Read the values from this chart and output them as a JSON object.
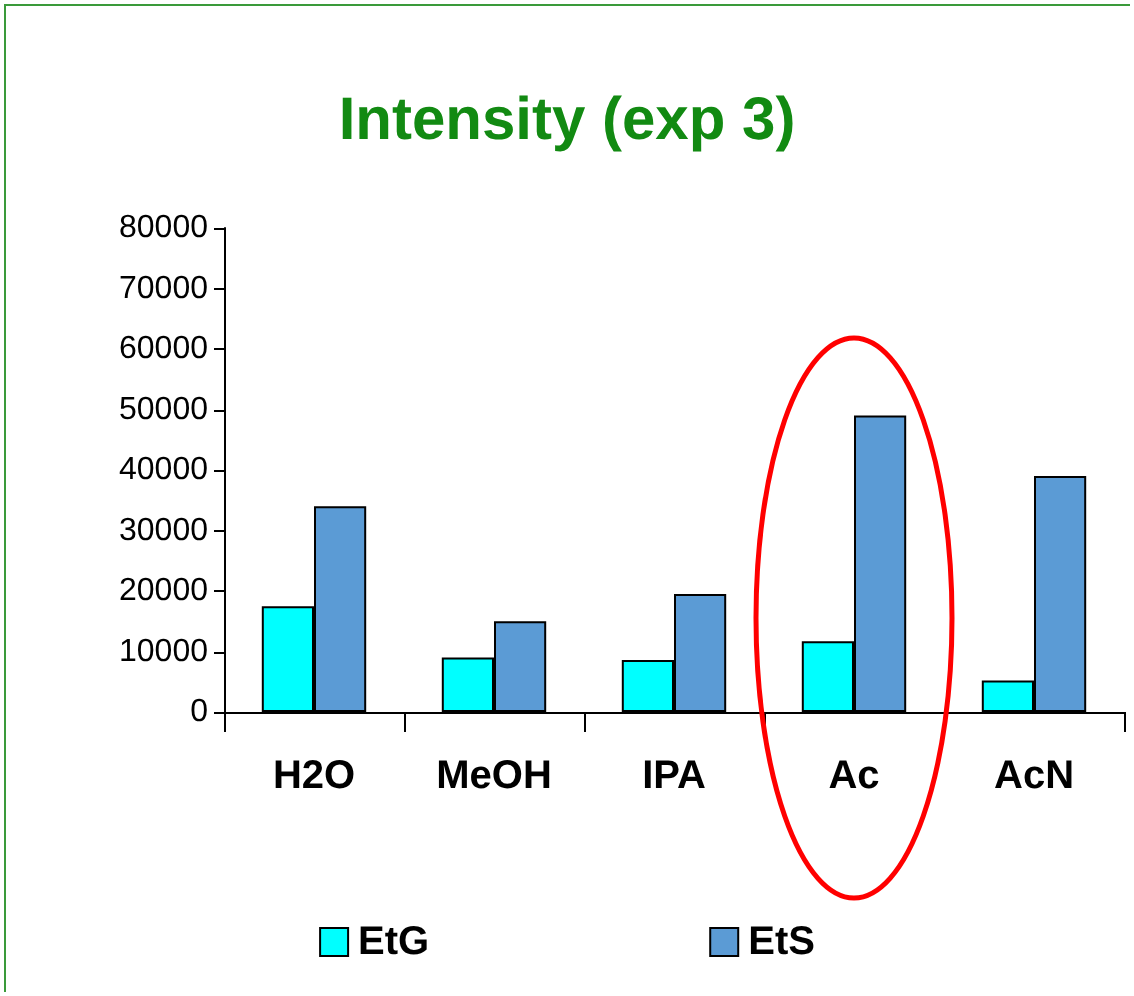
{
  "chart_data": {
    "type": "bar",
    "title": "Intensity (exp 3)",
    "categories": [
      "H2O",
      "MeOH",
      "IPA",
      "Ac",
      "AcN"
    ],
    "series": [
      {
        "name": "EtG",
        "color": "#00ffff",
        "values": [
          17500,
          9000,
          8600,
          11700,
          5200
        ]
      },
      {
        "name": "EtS",
        "color": "#5b9bd5",
        "values": [
          34000,
          15000,
          19500,
          49000,
          39000
        ]
      }
    ],
    "ylim": [
      0,
      80000
    ],
    "yticks": [
      0,
      10000,
      20000,
      30000,
      40000,
      50000,
      60000,
      70000,
      80000
    ],
    "grid": false,
    "legend": "bottom"
  }
}
